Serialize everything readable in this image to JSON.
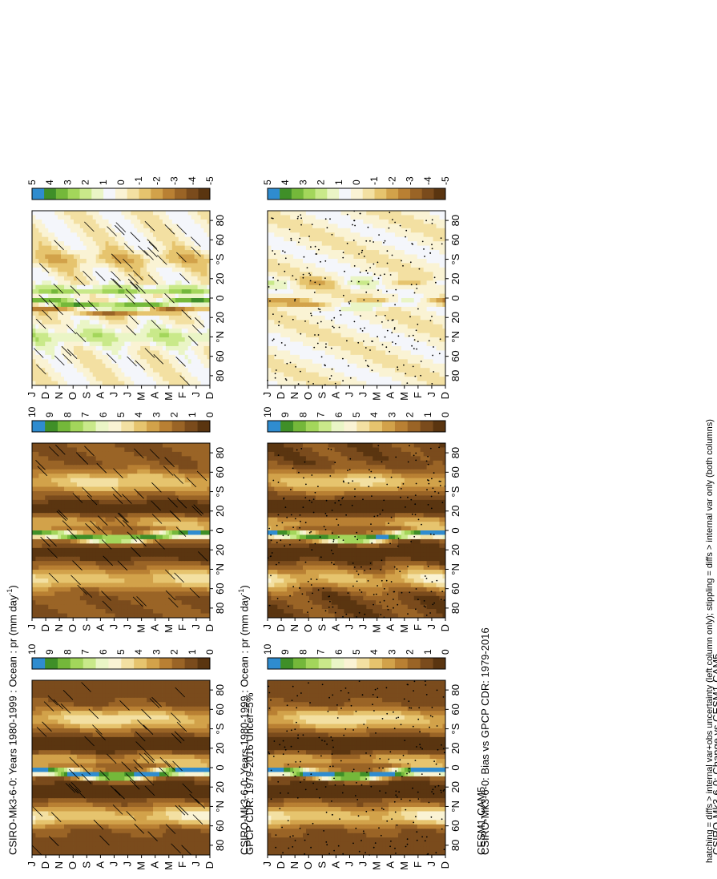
{
  "chart_data": [
    {
      "type": "heatmap",
      "title": "CSIRO-Mk3-6-0: Years 1980-1999 : Ocean : pr (mm day",
      "title_sup": "-1",
      "title_end": ")",
      "x_ticks": [
        "D",
        "J",
        "F",
        "M",
        "A",
        "M",
        "J",
        "J",
        "A",
        "S",
        "O",
        "N",
        "D",
        "J"
      ],
      "y_ticks": [
        "80",
        "60",
        "°N",
        "20",
        "0",
        "20",
        "°S",
        "60",
        "80"
      ],
      "colorbar_ticks": [
        "10",
        "9",
        "8",
        "7",
        "6",
        "5",
        "4",
        "3",
        "2",
        "1",
        "0"
      ],
      "overlay": "hatching",
      "field": "clim_model1"
    },
    {
      "type": "heatmap",
      "title": "CSIRO-Mk3-6-0: Years 1980-1999 : Ocean : pr (mm day",
      "title_sup": "-1",
      "title_end": ")",
      "x_ticks": [
        "D",
        "J",
        "F",
        "M",
        "A",
        "M",
        "J",
        "J",
        "A",
        "S",
        "O",
        "N",
        "D",
        "J"
      ],
      "y_ticks": [
        "80",
        "60",
        "°N",
        "20",
        "0",
        "20",
        "°S",
        "60",
        "80"
      ],
      "colorbar_ticks": [
        "10",
        "9",
        "8",
        "7",
        "6",
        "5",
        "4",
        "3",
        "2",
        "1",
        "0"
      ],
      "overlay": "stippling",
      "field": "clim_model1"
    },
    {
      "type": "heatmap",
      "title": "GPCP CDR: 1979-2016 Uncer=5%",
      "x_ticks": [
        "D",
        "J",
        "F",
        "M",
        "A",
        "M",
        "J",
        "J",
        "A",
        "S",
        "O",
        "N",
        "D",
        "J"
      ],
      "y_ticks": [
        "80",
        "60",
        "°N",
        "20",
        "0",
        "20",
        "°S",
        "60",
        "80"
      ],
      "colorbar_ticks": [
        "10",
        "9",
        "8",
        "7",
        "6",
        "5",
        "4",
        "3",
        "2",
        "1",
        "0"
      ],
      "overlay": "hatching",
      "field": "clim_obs"
    },
    {
      "type": "heatmap",
      "title": "CESM1-CAM5",
      "x_ticks": [
        "D",
        "J",
        "F",
        "M",
        "A",
        "M",
        "J",
        "J",
        "A",
        "S",
        "O",
        "N",
        "D",
        "J"
      ],
      "y_ticks": [
        "80",
        "60",
        "°N",
        "20",
        "0",
        "20",
        "°S",
        "60",
        "80"
      ],
      "colorbar_ticks": [
        "10",
        "9",
        "8",
        "7",
        "6",
        "5",
        "4",
        "3",
        "2",
        "1",
        "0"
      ],
      "overlay": "stippling",
      "field": "clim_model2"
    },
    {
      "type": "heatmap",
      "title": "CSIRO-Mk3-6-0: Bias vs GPCP CDR: 1979-2016",
      "x_ticks": [
        "D",
        "J",
        "F",
        "M",
        "A",
        "M",
        "J",
        "J",
        "A",
        "S",
        "O",
        "N",
        "D",
        "J"
      ],
      "y_ticks": [
        "80",
        "60",
        "°N",
        "20",
        "0",
        "20",
        "°S",
        "60",
        "80"
      ],
      "colorbar_ticks": [
        "5",
        "4",
        "3",
        "2",
        "1",
        "0",
        "-1",
        "-2",
        "-3",
        "-4",
        "-5"
      ],
      "overlay": "hatching",
      "field": "bias"
    },
    {
      "type": "heatmap",
      "title": "CSIRO-Mk3-6-0: Change vs CESM1-CAM5",
      "x_ticks": [
        "D",
        "J",
        "F",
        "M",
        "A",
        "M",
        "J",
        "J",
        "A",
        "S",
        "O",
        "N",
        "D",
        "J"
      ],
      "y_ticks": [
        "80",
        "60",
        "°N",
        "20",
        "0",
        "20",
        "°S",
        "60",
        "80"
      ],
      "colorbar_ticks": [
        "5",
        "4",
        "3",
        "2",
        "1",
        "0",
        "-1",
        "-2",
        "-3",
        "-4",
        "-5"
      ],
      "overlay": "stippling",
      "field": "change"
    }
  ],
  "footnote": "hatching = diffs > internal var+obs uncertainty (left column only); stippling = diffs > internal var only (both columns)",
  "colors": {
    "clim_scale": [
      "#5a3510",
      "#7a4b1c",
      "#9a6426",
      "#b98033",
      "#d2a24a",
      "#e6c46e",
      "#f3e0a2",
      "#faf3d4",
      "#eaf5c6",
      "#c9e98a",
      "#a3d65b",
      "#74b83a",
      "#3f8f28",
      "#2f8ccf"
    ],
    "diff_scale": [
      "#5a3510",
      "#7a4b1c",
      "#9a6426",
      "#b98033",
      "#d2a24a",
      "#e6c46e",
      "#f3e0a2",
      "#faf3d4",
      "#f4f6fb",
      "#eaf5c6",
      "#c9e98a",
      "#a3d65b",
      "#74b83a",
      "#3f8f28",
      "#2f8ccf"
    ]
  }
}
